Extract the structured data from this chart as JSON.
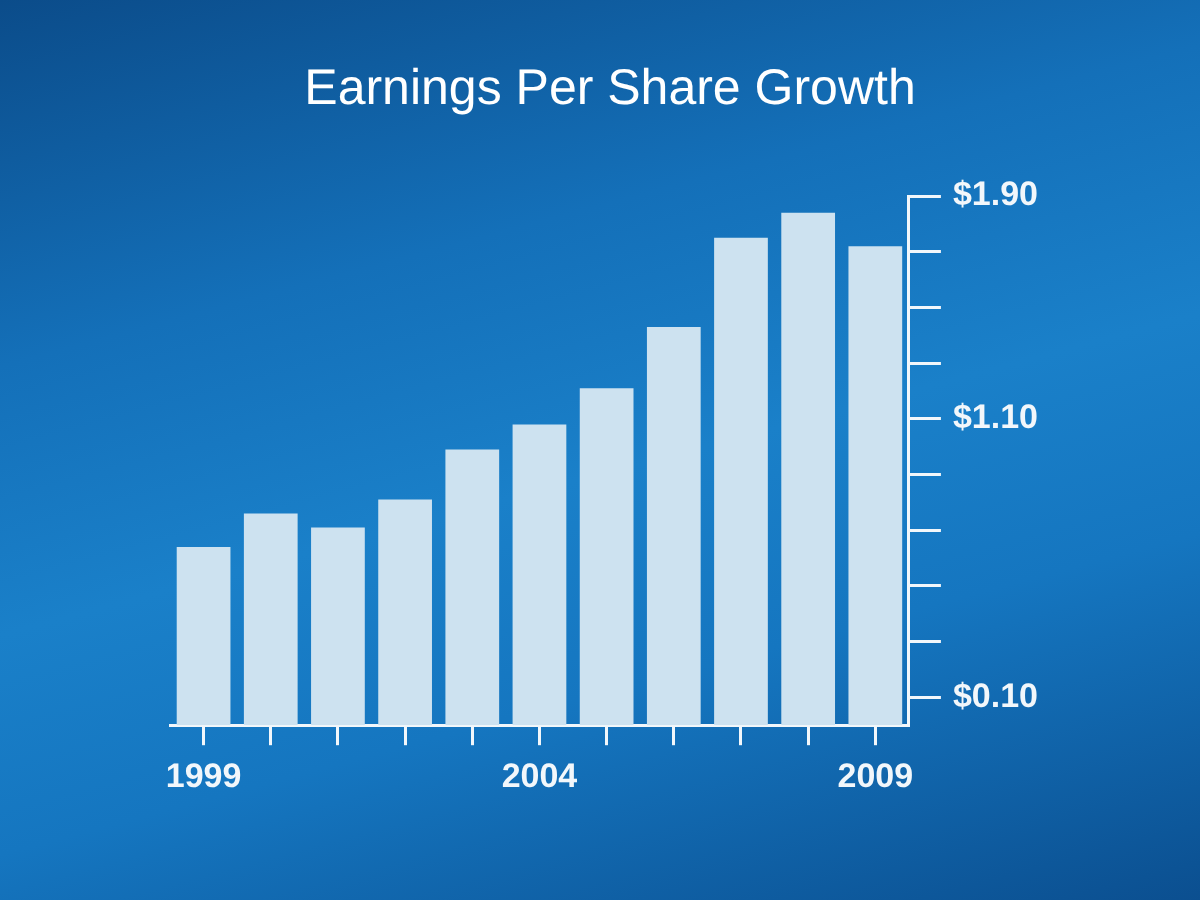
{
  "chart_data": {
    "type": "bar",
    "title": "Earnings Per Share Growth",
    "categories": [
      "1999",
      null,
      null,
      null,
      null,
      "2004",
      null,
      null,
      null,
      null,
      "2009"
    ],
    "values": [
      0.64,
      0.76,
      0.71,
      0.81,
      0.99,
      1.08,
      1.21,
      1.43,
      1.75,
      1.84,
      1.72
    ],
    "color": "#cde2f0",
    "ylim": [
      0,
      1.9
    ],
    "yticks": [
      {
        "value": 0.1,
        "label": "$0.10"
      },
      {
        "value": 0.3,
        "label": null
      },
      {
        "value": 0.5,
        "label": null
      },
      {
        "value": 0.7,
        "label": null
      },
      {
        "value": 0.9,
        "label": null
      },
      {
        "value": 1.1,
        "label": "$1.10"
      },
      {
        "value": 1.3,
        "label": null
      },
      {
        "value": 1.5,
        "label": null
      },
      {
        "value": 1.7,
        "label": null
      },
      {
        "value": 1.9,
        "label": "$1.90"
      }
    ]
  }
}
